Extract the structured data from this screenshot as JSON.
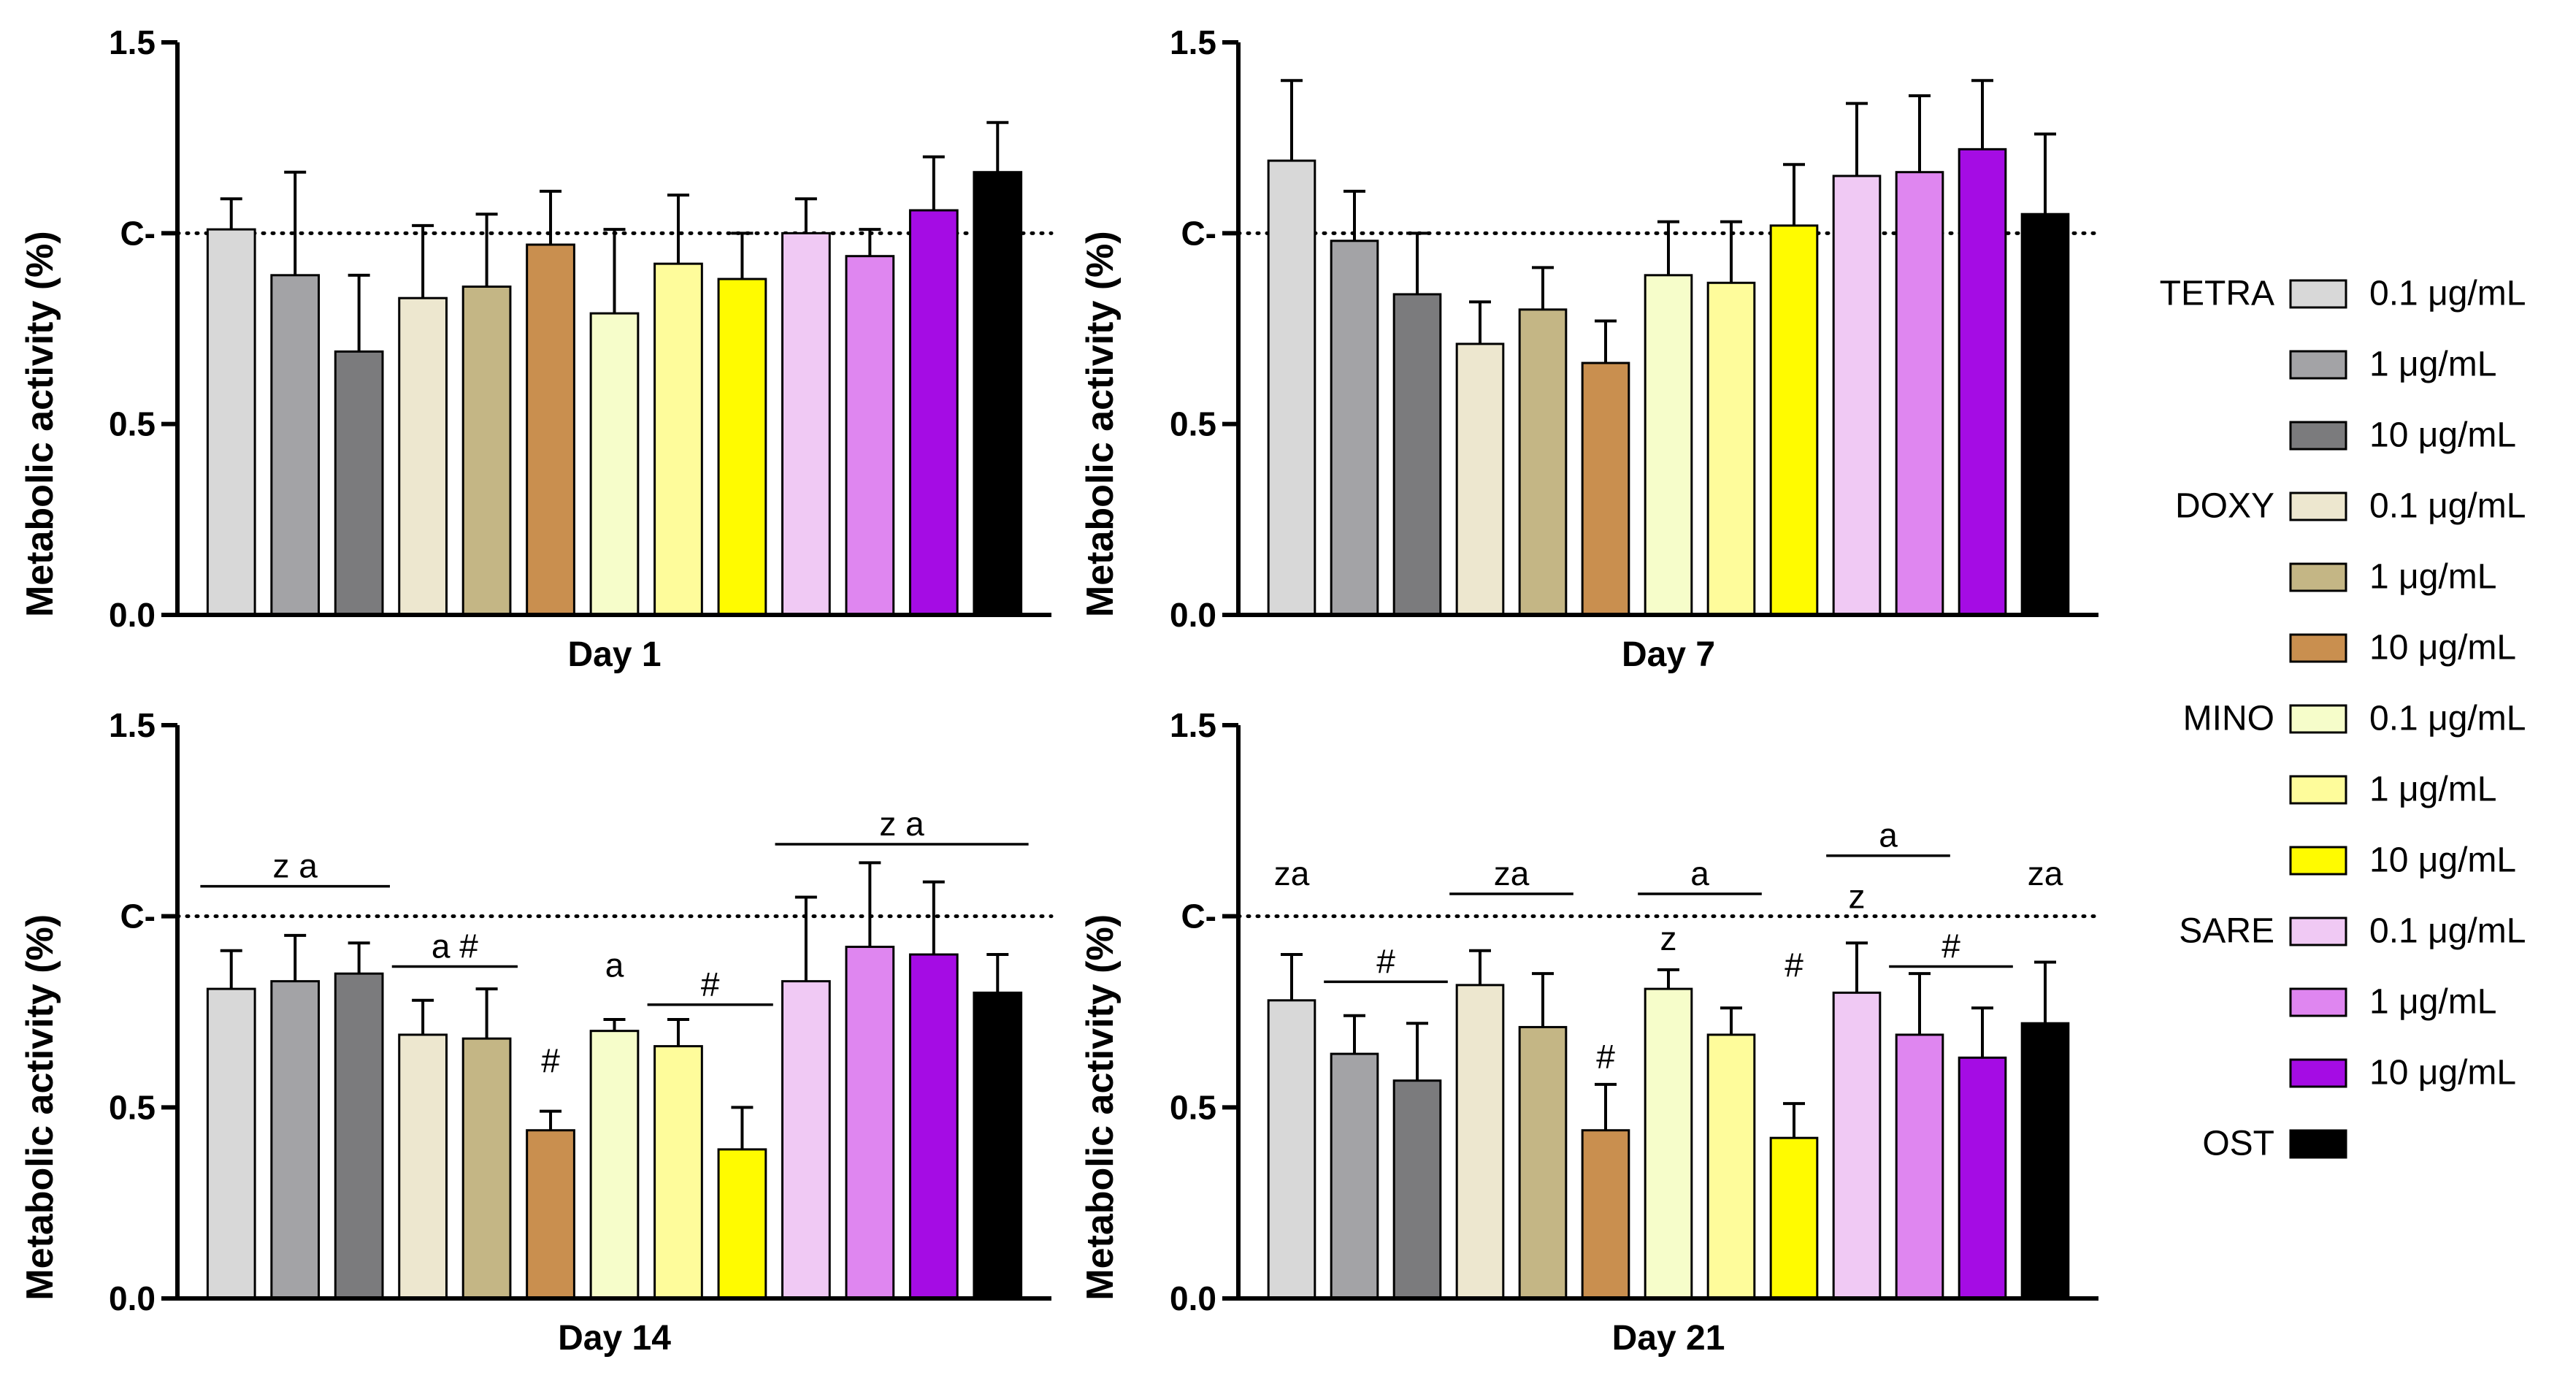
{
  "colors": {
    "TETRA 0.1": "#d8d8d8",
    "TETRA 1": "#a3a3a6",
    "TETRA 10": "#7b7b7d",
    "DOXY 0.1": "#ede7cf",
    "DOXY 1": "#c4b685",
    "DOXY 10": "#c98f4f",
    "MINO 0.1": "#f6fdca",
    "MINO 1": "#fefc9b",
    "MINO 10": "#fffb00",
    "SARE 0.1": "#f0c9f4",
    "SARE 1": "#df86f0",
    "SARE 10": "#a50ce4",
    "OST": "#000000"
  },
  "legend": {
    "groups": [
      {
        "label": "TETRA",
        "entries": [
          {
            "key": "TETRA 0.1",
            "label": "0.1 μg/mL"
          },
          {
            "key": "TETRA 1",
            "label": "1 μg/mL"
          },
          {
            "key": "TETRA 10",
            "label": "10 μg/mL"
          }
        ]
      },
      {
        "label": "DOXY",
        "entries": [
          {
            "key": "DOXY 0.1",
            "label": "0.1 μg/mL"
          },
          {
            "key": "DOXY 1",
            "label": "1 μg/mL"
          },
          {
            "key": "DOXY 10",
            "label": "10 μg/mL"
          }
        ]
      },
      {
        "label": "MINO",
        "entries": [
          {
            "key": "MINO 0.1",
            "label": "0.1 μg/mL"
          },
          {
            "key": "MINO 1",
            "label": "1 μg/mL"
          },
          {
            "key": "MINO 10",
            "label": "10 μg/mL"
          }
        ]
      },
      {
        "label": "SARE",
        "entries": [
          {
            "key": "SARE 0.1",
            "label": "0.1 μg/mL"
          },
          {
            "key": "SARE 1",
            "label": "1 μg/mL"
          },
          {
            "key": "SARE 10",
            "label": "10 μg/mL"
          }
        ]
      },
      {
        "label": "OST",
        "entries": [
          {
            "key": "OST",
            "label": ""
          }
        ]
      }
    ]
  },
  "chart_data": [
    {
      "type": "bar",
      "title": "Day 1",
      "xlabel": "Day 1",
      "ylabel": "Metabolic activity (%)",
      "ylim": [
        0,
        1.5
      ],
      "yticks": [
        0.0,
        0.5,
        1.0,
        1.5
      ],
      "ytick_labels": [
        "0.0",
        "0.5",
        "C-",
        "1.5"
      ],
      "reference_line": 1.0,
      "categories": [
        "TETRA 0.1",
        "TETRA 1",
        "TETRA 10",
        "DOXY 0.1",
        "DOXY 1",
        "DOXY 10",
        "MINO 0.1",
        "MINO 1",
        "MINO 10",
        "SARE 0.1",
        "SARE 1",
        "SARE 10",
        "OST"
      ],
      "values": [
        1.01,
        0.89,
        0.69,
        0.83,
        0.86,
        0.97,
        0.79,
        0.92,
        0.88,
        1.0,
        0.94,
        1.06,
        1.16
      ],
      "errors": [
        0.08,
        0.27,
        0.2,
        0.19,
        0.19,
        0.14,
        0.22,
        0.18,
        0.12,
        0.09,
        0.07,
        0.14,
        0.13
      ],
      "annotations": []
    },
    {
      "type": "bar",
      "title": "Day 7",
      "xlabel": "Day 7",
      "ylabel": "Metabolic activity (%)",
      "ylim": [
        0,
        1.5
      ],
      "yticks": [
        0.0,
        0.5,
        1.0,
        1.5
      ],
      "ytick_labels": [
        "0.0",
        "0.5",
        "C-",
        "1.5"
      ],
      "reference_line": 1.0,
      "categories": [
        "TETRA 0.1",
        "TETRA 1",
        "TETRA 10",
        "DOXY 0.1",
        "DOXY 1",
        "DOXY 10",
        "MINO 0.1",
        "MINO 1",
        "MINO 10",
        "SARE 0.1",
        "SARE 1",
        "SARE 10",
        "OST"
      ],
      "values": [
        1.19,
        0.98,
        0.84,
        0.71,
        0.8,
        0.66,
        0.89,
        0.87,
        1.02,
        1.15,
        1.16,
        1.22,
        1.05
      ],
      "errors": [
        0.21,
        0.13,
        0.16,
        0.11,
        0.11,
        0.11,
        0.14,
        0.16,
        0.16,
        0.19,
        0.2,
        0.18,
        0.21
      ],
      "annotations": []
    },
    {
      "type": "bar",
      "title": "Day 14",
      "xlabel": "Day 14",
      "ylabel": "Metabolic activity (%)",
      "ylim": [
        0,
        1.5
      ],
      "yticks": [
        0.0,
        0.5,
        1.0,
        1.5
      ],
      "ytick_labels": [
        "0.0",
        "0.5",
        "C-",
        "1.5"
      ],
      "reference_line": 1.0,
      "categories": [
        "TETRA 0.1",
        "TETRA 1",
        "TETRA 10",
        "DOXY 0.1",
        "DOXY 1",
        "DOXY 10",
        "MINO 0.1",
        "MINO 1",
        "MINO 10",
        "SARE 0.1",
        "SARE 1",
        "SARE 10",
        "OST"
      ],
      "values": [
        0.81,
        0.83,
        0.85,
        0.69,
        0.68,
        0.44,
        0.7,
        0.66,
        0.39,
        0.83,
        0.92,
        0.9,
        0.8
      ],
      "errors": [
        0.1,
        0.12,
        0.08,
        0.09,
        0.13,
        0.05,
        0.03,
        0.07,
        0.11,
        0.22,
        0.22,
        0.19,
        0.1
      ],
      "annotations": [
        {
          "text": "z a",
          "from": 0,
          "to": 2,
          "y": 1.09
        },
        {
          "text": "a #",
          "from": 3,
          "to": 4,
          "y": 0.88
        },
        {
          "text": "#",
          "from": 5,
          "to": 5,
          "y": 0.58
        },
        {
          "text": "a",
          "from": 6,
          "to": 6,
          "y": 0.83
        },
        {
          "text": "#",
          "from": 7,
          "to": 8,
          "y": 0.78
        },
        {
          "text": "z a",
          "from": 9,
          "to": 12,
          "y": 1.2
        }
      ]
    },
    {
      "type": "bar",
      "title": "Day 21",
      "xlabel": "Day 21",
      "ylabel": "Metabolic activity (%)",
      "ylim": [
        0,
        1.5
      ],
      "yticks": [
        0.0,
        0.5,
        1.0,
        1.5
      ],
      "ytick_labels": [
        "0.0",
        "0.5",
        "C-",
        "1.5"
      ],
      "reference_line": 1.0,
      "categories": [
        "TETRA 0.1",
        "TETRA 1",
        "TETRA 10",
        "DOXY 0.1",
        "DOXY 1",
        "DOXY 10",
        "MINO 0.1",
        "MINO 1",
        "MINO 10",
        "SARE 0.1",
        "SARE 1",
        "SARE 10",
        "OST"
      ],
      "values": [
        0.78,
        0.64,
        0.57,
        0.82,
        0.71,
        0.44,
        0.81,
        0.69,
        0.42,
        0.8,
        0.69,
        0.63,
        0.72
      ],
      "errors": [
        0.12,
        0.1,
        0.15,
        0.09,
        0.14,
        0.12,
        0.05,
        0.07,
        0.09,
        0.13,
        0.16,
        0.13,
        0.16
      ],
      "annotations": [
        {
          "text": "za",
          "from": 0,
          "to": 0,
          "y": 1.07
        },
        {
          "text": "#",
          "from": 1,
          "to": 2,
          "y": 0.84
        },
        {
          "text": "za",
          "from": 3,
          "to": 4,
          "y": 1.07
        },
        {
          "text": "#",
          "from": 5,
          "to": 5,
          "y": 0.59
        },
        {
          "text": "z",
          "from": 6,
          "to": 6,
          "y": 0.9
        },
        {
          "text": "a",
          "from": 6,
          "to": 7,
          "y": 1.07
        },
        {
          "text": "#",
          "from": 8,
          "to": 8,
          "y": 0.83
        },
        {
          "text": "z",
          "from": 9,
          "to": 9,
          "y": 1.01
        },
        {
          "text": "a",
          "from": 9,
          "to": 10,
          "y": 1.17
        },
        {
          "text": "#",
          "from": 10,
          "to": 11,
          "y": 0.88
        },
        {
          "text": "za",
          "from": 12,
          "to": 12,
          "y": 1.07
        }
      ]
    }
  ]
}
